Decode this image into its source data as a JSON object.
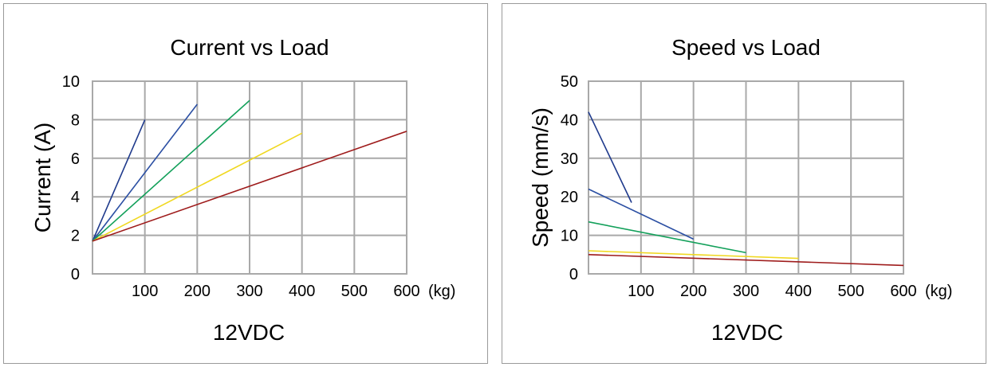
{
  "chart_data": [
    {
      "type": "line",
      "title": "Current vs Load",
      "xlabel": "12VDC",
      "xunit": "(kg)",
      "ylabel": "Current (A)",
      "xlim": [
        0,
        600
      ],
      "ylim": [
        0,
        10
      ],
      "xticks": [
        100,
        200,
        300,
        400,
        500,
        600
      ],
      "yticks": [
        0,
        2,
        4,
        6,
        8,
        10
      ],
      "grid": true,
      "series": [
        {
          "color": "#1f3a8c",
          "points": [
            [
              0,
              1.7
            ],
            [
              100,
              8.0
            ]
          ]
        },
        {
          "color": "#2b4fa3",
          "points": [
            [
              0,
              1.7
            ],
            [
              200,
              8.8
            ]
          ]
        },
        {
          "color": "#12a05a",
          "points": [
            [
              0,
              1.7
            ],
            [
              300,
              9.0
            ]
          ]
        },
        {
          "color": "#f0d820",
          "points": [
            [
              0,
              1.7
            ],
            [
              400,
              7.3
            ]
          ]
        },
        {
          "color": "#9e1b1b",
          "points": [
            [
              0,
              1.7
            ],
            [
              600,
              7.4
            ]
          ]
        }
      ]
    },
    {
      "type": "line",
      "title": "Speed vs Load",
      "xlabel": "12VDC",
      "xunit": "(kg)",
      "ylabel": "Speed (mm/s)",
      "xlim": [
        0,
        600
      ],
      "ylim": [
        0,
        50
      ],
      "xticks": [
        100,
        200,
        300,
        400,
        500,
        600
      ],
      "yticks": [
        0,
        10,
        20,
        30,
        40,
        50
      ],
      "grid": true,
      "series": [
        {
          "color": "#1f3a8c",
          "points": [
            [
              0,
              42
            ],
            [
              82,
              18.5
            ]
          ]
        },
        {
          "color": "#2b4fa3",
          "points": [
            [
              0,
              22
            ],
            [
              200,
              9
            ]
          ]
        },
        {
          "color": "#12a05a",
          "points": [
            [
              0,
              13.5
            ],
            [
              300,
              5.5
            ]
          ]
        },
        {
          "color": "#f0d820",
          "points": [
            [
              0,
              6
            ],
            [
              400,
              4
            ]
          ]
        },
        {
          "color": "#9e1b1b",
          "points": [
            [
              0,
              5
            ],
            [
              600,
              2.2
            ]
          ]
        }
      ]
    }
  ]
}
